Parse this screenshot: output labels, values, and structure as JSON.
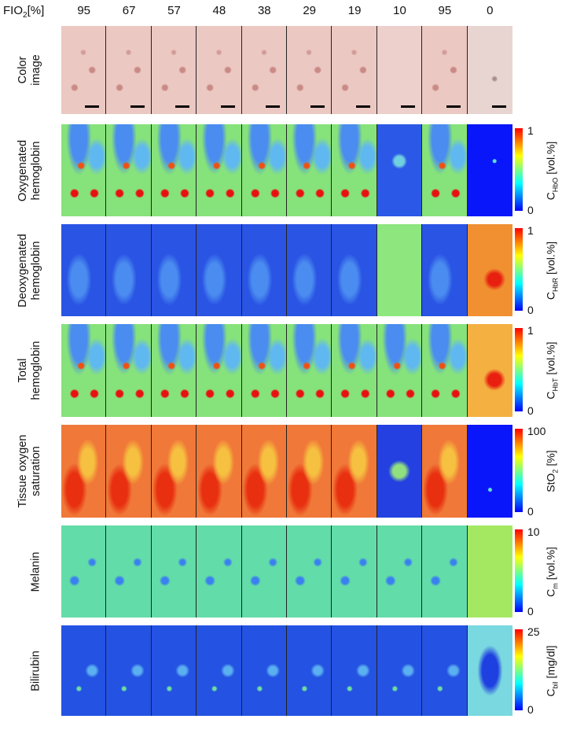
{
  "header": {
    "label": {
      "symbol": "FIO",
      "subscript": "2",
      "unit": "[%]"
    },
    "columns": [
      95,
      67,
      57,
      48,
      38,
      29,
      19,
      10,
      95,
      0
    ]
  },
  "rows": [
    {
      "label": [
        "Color",
        "image"
      ]
    },
    {
      "label": [
        "Oxygenated",
        "hemoglobin"
      ],
      "colorbar": {
        "max": 1,
        "min": 0,
        "title": {
          "symbol": "C",
          "subscript": "HbO",
          "unit": "[vol.%]"
        }
      }
    },
    {
      "label": [
        "Deoxygenated",
        "hemoglobin"
      ],
      "colorbar": {
        "max": 1,
        "min": 0,
        "title": {
          "symbol": "C",
          "subscript": "HbR",
          "unit": "[vol.%]"
        }
      }
    },
    {
      "label": [
        "Total",
        "hemoglobin"
      ],
      "colorbar": {
        "max": 1,
        "min": 0,
        "title": {
          "symbol": "C",
          "subscript": "HbT",
          "unit": "[vol.%]"
        }
      }
    },
    {
      "label": [
        "Tissue oxygen",
        "saturation"
      ],
      "colorbar": {
        "max": 100,
        "min": 0,
        "title": {
          "symbol": "StO",
          "subscript": "2",
          "unit": "[%]"
        }
      }
    },
    {
      "label": [
        "Melanin"
      ],
      "colorbar": {
        "max": 10,
        "min": 0,
        "title": {
          "symbol": "C",
          "subscript": "m",
          "unit": "[vol.%]"
        }
      }
    },
    {
      "label": [
        "Bilirubin"
      ],
      "colorbar": {
        "max": 25,
        "min": 0,
        "title": {
          "symbol": "C",
          "subscript": "bil",
          "unit": "[mg/dl]"
        }
      }
    }
  ]
}
